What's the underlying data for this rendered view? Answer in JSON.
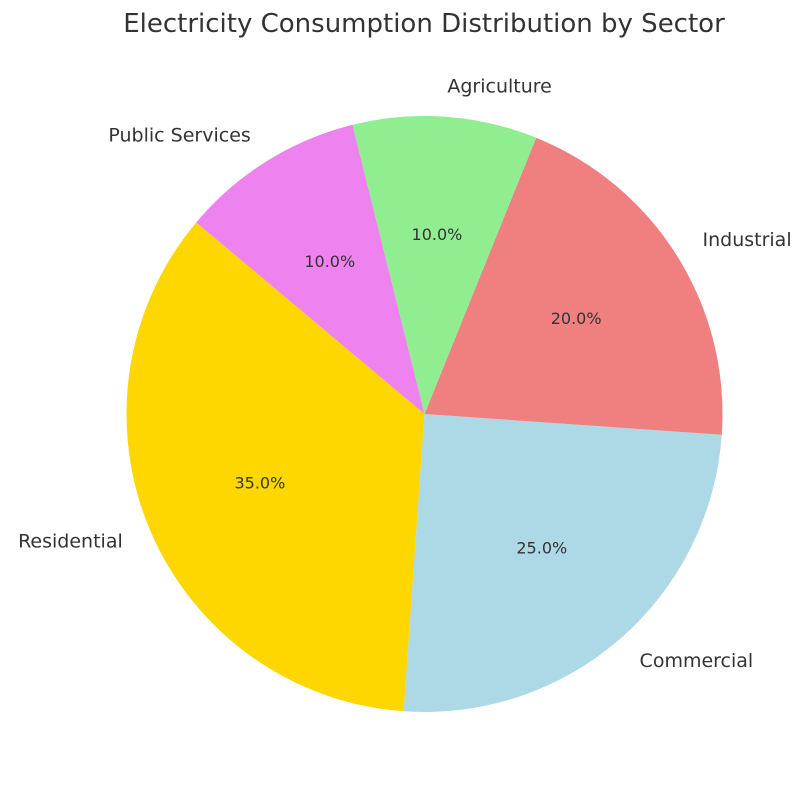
{
  "chart_data": {
    "type": "pie",
    "title": "Electricity Consumption Distribution by Sector",
    "start_angle_deg": 140,
    "direction": "counterclockwise",
    "slices": [
      {
        "label": "Residential",
        "value": 35,
        "percent_label": "35.0%",
        "color": "#FFD700"
      },
      {
        "label": "Commercial",
        "value": 25,
        "percent_label": "25.0%",
        "color": "#ADD8E6"
      },
      {
        "label": "Industrial",
        "value": 20,
        "percent_label": "20.0%",
        "color": "#F08080"
      },
      {
        "label": "Agriculture",
        "value": 10,
        "percent_label": "10.0%",
        "color": "#90EE90"
      },
      {
        "label": "Public Services",
        "value": 10,
        "percent_label": "10.0%",
        "color": "#EE82EE"
      }
    ]
  }
}
